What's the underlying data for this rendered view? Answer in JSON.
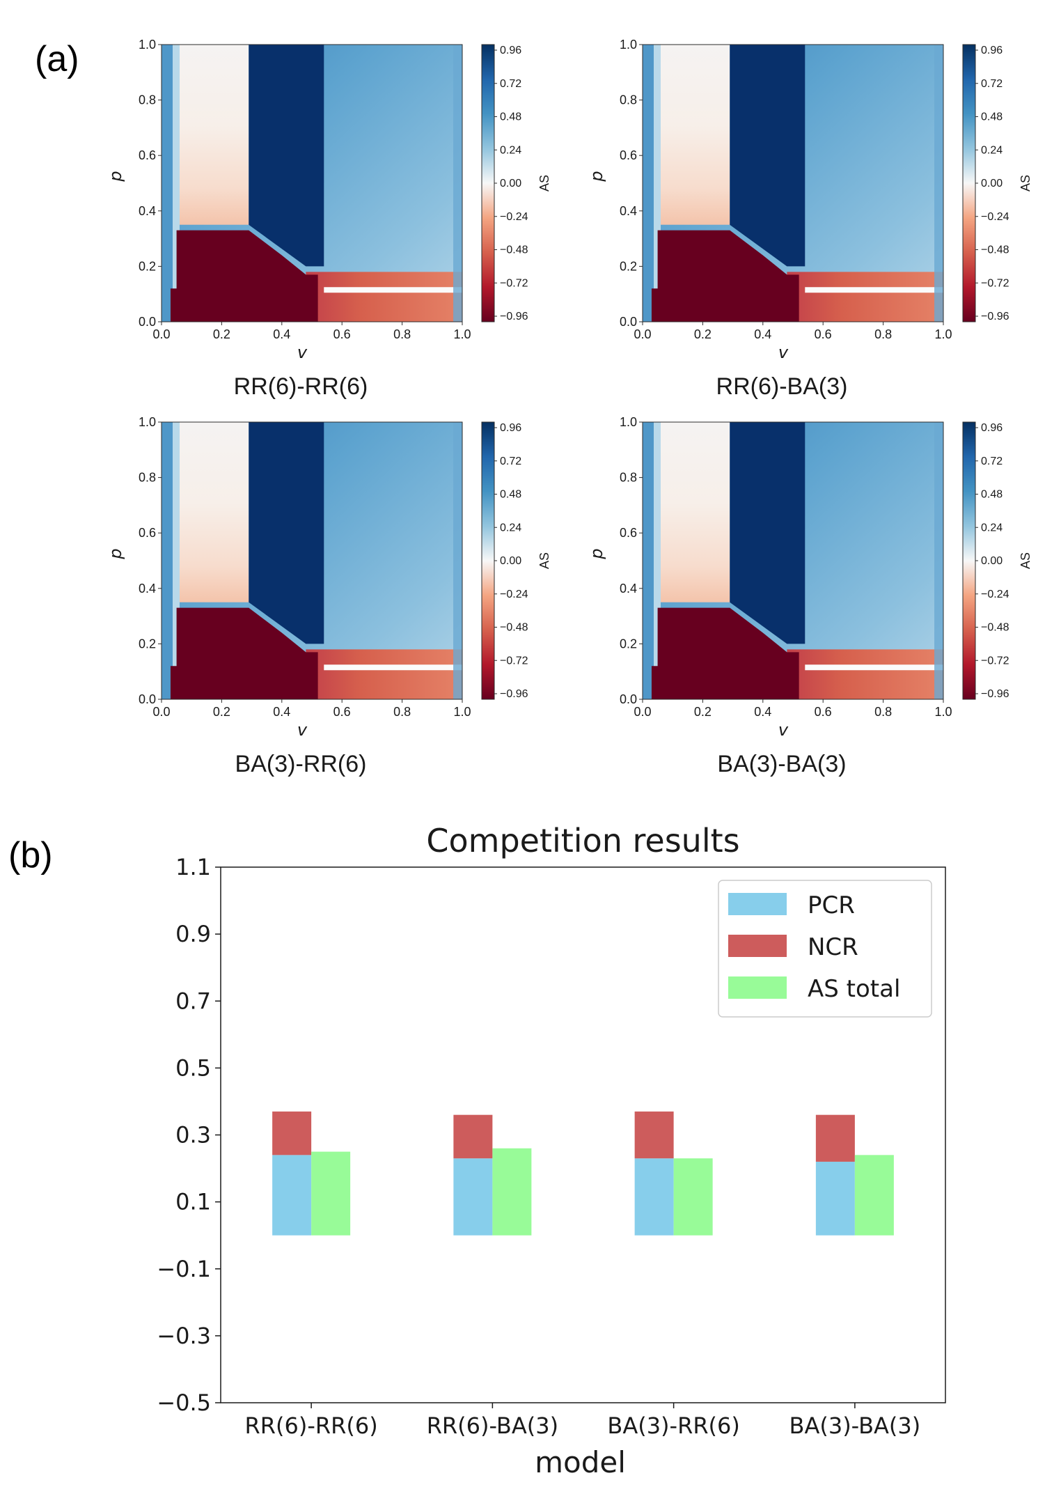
{
  "panel_labels": {
    "a": "(a)",
    "b": "(b)"
  },
  "chart_data": [
    {
      "type": "heatmap",
      "caption": "RR(6)-RR(6)",
      "xlabel": "v",
      "ylabel": "p",
      "colorbar_label": "AS",
      "xlim": [
        0,
        1
      ],
      "ylim": [
        0,
        1
      ],
      "xticks": [
        "0.0",
        "0.2",
        "0.4",
        "0.6",
        "0.8",
        "1.0"
      ],
      "yticks": [
        "0.0",
        "0.2",
        "0.4",
        "0.6",
        "0.8",
        "1.0"
      ],
      "colorbar_ticks": [
        "0.96",
        "0.72",
        "0.48",
        "0.24",
        "0.00",
        "−0.24",
        "−0.48",
        "−0.72",
        "−0.96"
      ],
      "colormap": "RdBu",
      "regions": [
        {
          "name": "low p, low v",
          "value": -0.96
        },
        {
          "name": "mid v band",
          "value": 0.96
        },
        {
          "name": "high v, p above 0.15",
          "value": 0.5
        },
        {
          "name": "high v, p below 0.15",
          "value": -0.55
        },
        {
          "name": "low v, p above 0.35",
          "value": 0.0
        }
      ]
    },
    {
      "type": "heatmap",
      "caption": "RR(6)-BA(3)",
      "xlabel": "v",
      "ylabel": "p",
      "colorbar_label": "AS",
      "xlim": [
        0,
        1
      ],
      "ylim": [
        0,
        1
      ],
      "xticks": [
        "0.0",
        "0.2",
        "0.4",
        "0.6",
        "0.8",
        "1.0"
      ],
      "yticks": [
        "0.0",
        "0.2",
        "0.4",
        "0.6",
        "0.8",
        "1.0"
      ],
      "colorbar_ticks": [
        "0.96",
        "0.72",
        "0.48",
        "0.24",
        "0.00",
        "−0.24",
        "−0.48",
        "−0.72",
        "−0.96"
      ],
      "colormap": "RdBu",
      "regions": [
        {
          "name": "low p, low v",
          "value": -0.96
        },
        {
          "name": "mid v band",
          "value": 0.96
        },
        {
          "name": "high v, p above 0.15",
          "value": 0.5
        },
        {
          "name": "high v, p below 0.15",
          "value": -0.55
        },
        {
          "name": "low v, p above 0.35",
          "value": 0.0
        }
      ]
    },
    {
      "type": "heatmap",
      "caption": "BA(3)-RR(6)",
      "xlabel": "v",
      "ylabel": "p",
      "colorbar_label": "AS",
      "xlim": [
        0,
        1
      ],
      "ylim": [
        0,
        1
      ],
      "xticks": [
        "0.0",
        "0.2",
        "0.4",
        "0.6",
        "0.8",
        "1.0"
      ],
      "yticks": [
        "0.0",
        "0.2",
        "0.4",
        "0.6",
        "0.8",
        "1.0"
      ],
      "colorbar_ticks": [
        "0.96",
        "0.72",
        "0.48",
        "0.24",
        "0.00",
        "−0.24",
        "−0.48",
        "−0.72",
        "−0.96"
      ],
      "colormap": "RdBu",
      "regions": [
        {
          "name": "low p, low v",
          "value": -0.96
        },
        {
          "name": "mid v band",
          "value": 0.96
        },
        {
          "name": "high v, p above 0.15",
          "value": 0.5
        },
        {
          "name": "high v, p below 0.15",
          "value": -0.55
        },
        {
          "name": "low v, p above 0.35",
          "value": 0.0
        }
      ]
    },
    {
      "type": "heatmap",
      "caption": "BA(3)-BA(3)",
      "xlabel": "v",
      "ylabel": "p",
      "colorbar_label": "AS",
      "xlim": [
        0,
        1
      ],
      "ylim": [
        0,
        1
      ],
      "xticks": [
        "0.0",
        "0.2",
        "0.4",
        "0.6",
        "0.8",
        "1.0"
      ],
      "yticks": [
        "0.0",
        "0.2",
        "0.4",
        "0.6",
        "0.8",
        "1.0"
      ],
      "colorbar_ticks": [
        "0.96",
        "0.72",
        "0.48",
        "0.24",
        "0.00",
        "−0.24",
        "−0.48",
        "−0.72",
        "−0.96"
      ],
      "colormap": "RdBu",
      "regions": [
        {
          "name": "low p, low v",
          "value": -0.96
        },
        {
          "name": "mid v band",
          "value": 0.96
        },
        {
          "name": "high v, p above 0.15",
          "value": 0.5
        },
        {
          "name": "high v, p below 0.15",
          "value": -0.55
        },
        {
          "name": "low v, p above 0.35",
          "value": 0.0
        }
      ]
    },
    {
      "type": "bar",
      "title": "Competition results",
      "xlabel": "model",
      "ylabel": "",
      "ylim": [
        -0.5,
        1.1
      ],
      "yticks": [
        "−0.5",
        "−0.3",
        "−0.1",
        "0.1",
        "0.3",
        "0.5",
        "0.7",
        "0.9",
        "1.1"
      ],
      "ytick_values": [
        -0.5,
        -0.3,
        -0.1,
        0.1,
        0.3,
        0.5,
        0.7,
        0.9,
        1.1
      ],
      "categories": [
        "RR(6)-RR(6)",
        "RR(6)-BA(3)",
        "BA(3)-RR(6)",
        "BA(3)-BA(3)"
      ],
      "legend_position": "upper right",
      "series": [
        {
          "name": "PCR",
          "color": "#87ceeb",
          "values": [
            0.24,
            0.23,
            0.23,
            0.22
          ],
          "stack": "left"
        },
        {
          "name": "NCR",
          "color": "#cd5c5c",
          "values": [
            0.13,
            0.13,
            0.14,
            0.14
          ],
          "stack": "left"
        },
        {
          "name": "AS total",
          "color": "#98fb98",
          "values": [
            0.25,
            0.26,
            0.23,
            0.24
          ],
          "stack": "right"
        }
      ]
    }
  ]
}
